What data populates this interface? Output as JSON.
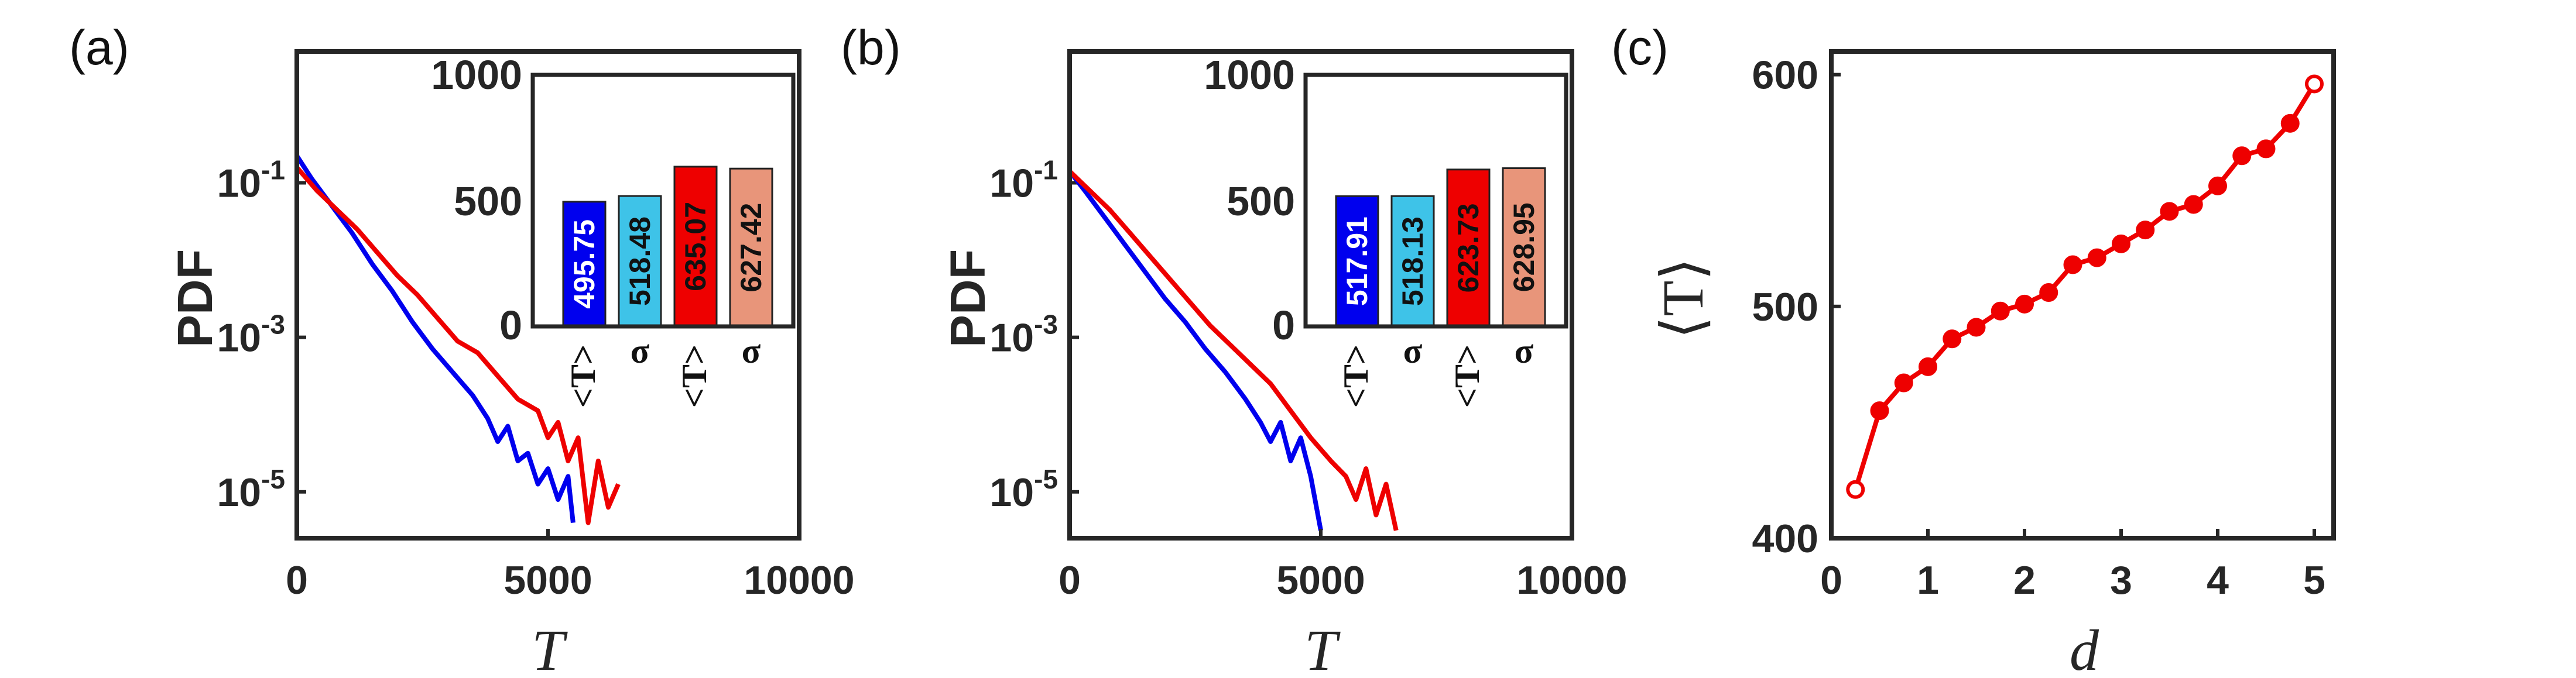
{
  "panel_letters": [
    "(a)",
    "(b)",
    "(c)"
  ],
  "chart_data": [
    {
      "type": "line",
      "panel": "(a)",
      "xlabel": "T",
      "ylabel": "PDF",
      "xlim": [
        0,
        10000
      ],
      "ylim_log10": [
        -5.6,
        0.7
      ],
      "yscale": "log",
      "xticks": [
        "0",
        "5000",
        "10000"
      ],
      "yticks": [
        {
          "base": "10",
          "exp": "-1"
        },
        {
          "base": "10",
          "exp": "-3"
        },
        {
          "base": "10",
          "exp": "-5"
        }
      ],
      "series": [
        {
          "color": "#0000ee",
          "x": [
            0,
            300,
            700,
            1100,
            1500,
            1900,
            2300,
            2700,
            3100,
            3500,
            3800,
            4000,
            4200,
            4400,
            4600,
            4800,
            5000,
            5200,
            5400,
            5500
          ],
          "y_log10": [
            -0.65,
            -0.95,
            -1.3,
            -1.65,
            -2.05,
            -2.4,
            -2.8,
            -3.15,
            -3.45,
            -3.75,
            -4.05,
            -4.35,
            -4.15,
            -4.6,
            -4.5,
            -4.9,
            -4.7,
            -5.1,
            -4.8,
            -5.4
          ]
        },
        {
          "color": "#ee0000",
          "x": [
            0,
            400,
            800,
            1200,
            1600,
            2000,
            2400,
            2800,
            3200,
            3600,
            4000,
            4400,
            4800,
            5000,
            5200,
            5400,
            5600,
            5800,
            6000,
            6200,
            6400
          ],
          "y_log10": [
            -0.8,
            -1.1,
            -1.35,
            -1.6,
            -1.9,
            -2.2,
            -2.45,
            -2.75,
            -3.05,
            -3.2,
            -3.5,
            -3.8,
            -3.95,
            -4.3,
            -4.1,
            -4.6,
            -4.3,
            -5.4,
            -4.6,
            -5.2,
            -4.9
          ]
        }
      ],
      "inset": {
        "type": "bar",
        "ylim": [
          0,
          1000
        ],
        "yticks": [
          "1000",
          "500",
          "0"
        ],
        "categories": [
          "<T>",
          "σ",
          "<T>",
          "σ"
        ],
        "values": [
          495.75,
          518.48,
          635.07,
          627.42
        ],
        "value_labels": [
          "495.75",
          "518.48",
          "635.07",
          "627.42"
        ],
        "colors": [
          "#0000ee",
          "#3ec3e8",
          "#ee0000",
          "#e8957a"
        ],
        "label_colors": [
          "#ffffff",
          "#111111",
          "#111111",
          "#111111"
        ]
      }
    },
    {
      "type": "line",
      "panel": "(b)",
      "xlabel": "T",
      "ylabel": "PDF",
      "xlim": [
        0,
        10000
      ],
      "ylim_log10": [
        -5.6,
        0.7
      ],
      "yscale": "log",
      "xticks": [
        "0",
        "5000",
        "10000"
      ],
      "yticks": [
        {
          "base": "10",
          "exp": "-1"
        },
        {
          "base": "10",
          "exp": "-3"
        },
        {
          "base": "10",
          "exp": "-5"
        }
      ],
      "series": [
        {
          "color": "#0000ee",
          "x": [
            0,
            300,
            700,
            1100,
            1500,
            1900,
            2300,
            2700,
            3100,
            3500,
            3800,
            4000,
            4200,
            4400,
            4600,
            4800,
            5000
          ],
          "y_log10": [
            -0.85,
            -1.1,
            -1.45,
            -1.8,
            -2.15,
            -2.5,
            -2.8,
            -3.15,
            -3.45,
            -3.8,
            -4.1,
            -4.35,
            -4.1,
            -4.6,
            -4.3,
            -4.8,
            -5.5
          ]
        },
        {
          "color": "#ee0000",
          "x": [
            0,
            400,
            800,
            1200,
            1600,
            2000,
            2400,
            2800,
            3200,
            3600,
            4000,
            4400,
            4800,
            5200,
            5500,
            5700,
            5900,
            6100,
            6300,
            6500
          ],
          "y_log10": [
            -0.85,
            -1.1,
            -1.35,
            -1.65,
            -1.95,
            -2.25,
            -2.55,
            -2.85,
            -3.1,
            -3.35,
            -3.6,
            -3.95,
            -4.3,
            -4.6,
            -4.8,
            -5.1,
            -4.7,
            -5.3,
            -4.9,
            -5.5
          ]
        }
      ],
      "inset": {
        "type": "bar",
        "ylim": [
          0,
          1000
        ],
        "yticks": [
          "1000",
          "500",
          "0"
        ],
        "categories": [
          "<T>",
          "σ",
          "<T>",
          "σ"
        ],
        "values": [
          517.91,
          518.13,
          623.73,
          628.95
        ],
        "value_labels": [
          "517.91",
          "518.13",
          "623.73",
          "628.95"
        ],
        "colors": [
          "#0000ee",
          "#3ec3e8",
          "#ee0000",
          "#e8957a"
        ],
        "label_colors": [
          "#ffffff",
          "#111111",
          "#111111",
          "#111111"
        ]
      }
    },
    {
      "type": "line",
      "panel": "(c)",
      "xlabel": "d",
      "ylabel": "⟨T⟩",
      "xlim": [
        0,
        5.2
      ],
      "ylim": [
        400,
        610
      ],
      "xticks": [
        "0",
        "1",
        "2",
        "3",
        "4",
        "5"
      ],
      "yticks": [
        "600",
        "500",
        "400"
      ],
      "series": [
        {
          "color": "#ee0000",
          "x": [
            0.25,
            0.5,
            0.75,
            1.0,
            1.25,
            1.5,
            1.75,
            2.0,
            2.25,
            2.5,
            2.75,
            3.0,
            3.25,
            3.5,
            3.75,
            4.0,
            4.25,
            4.5,
            4.75,
            5.0
          ],
          "y": [
            421,
            455,
            467,
            474,
            486,
            491,
            498,
            501,
            506,
            518,
            521,
            527,
            533,
            541,
            544,
            552,
            565,
            568,
            579,
            596
          ]
        }
      ]
    }
  ]
}
